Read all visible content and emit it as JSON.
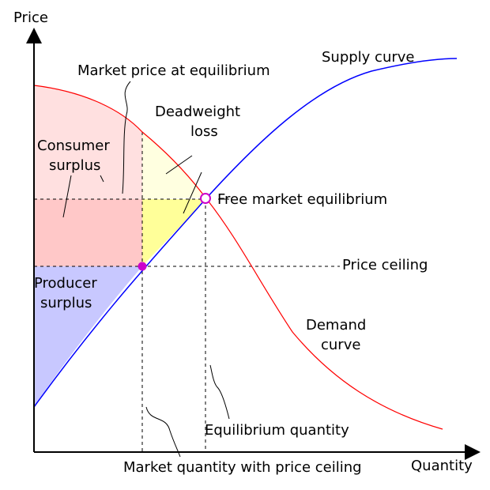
{
  "axes": {
    "y_label": "Price",
    "x_label": "Quantity"
  },
  "labels": {
    "supply_curve": "Supply curve",
    "market_price": "Market price at equilibrium",
    "deadweight_line1": "Deadweight",
    "deadweight_line2": "loss",
    "consumer_line1": "Consumer",
    "consumer_line2": "surplus",
    "free_market": "Free market equilibrium",
    "price_ceiling": "Price ceiling",
    "producer_line1": "Producer",
    "producer_line2": "surplus",
    "demand_line1": "Demand",
    "demand_line2": "curve",
    "equilibrium_quantity": "Equilibrium quantity",
    "market_quantity": "Market quantity with price ceiling"
  },
  "colors": {
    "supply": "#0000ff",
    "demand": "#ff0000",
    "consumer_surplus_light": "#ffe0e0",
    "consumer_surplus": "#ffc8c8",
    "producer_surplus": "#c8c8ff",
    "deadweight_light": "#ffffe0",
    "deadweight": "#ffff99",
    "ceiling_point": "#cc00cc"
  }
}
